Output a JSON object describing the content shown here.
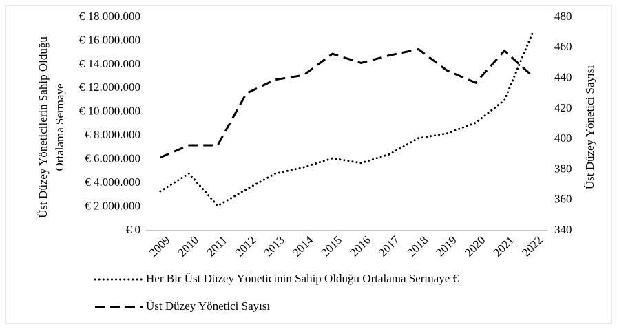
{
  "chart_data": {
    "type": "line",
    "y_label": [
      "Üst Düzey Yöneticilerin Sahip Olduğu",
      "Ortalama Sermaye"
    ],
    "y2_label": "Üst Düzey Yönetici Sayısı",
    "categories": [
      "2009",
      "2010",
      "2011",
      "2012",
      "2013",
      "2014",
      "2015",
      "2016",
      "2017",
      "2018",
      "2019",
      "2020",
      "2021",
      "2022"
    ],
    "series": [
      {
        "name": "Her Bir Üst Düzey Yöneticinin Sahip Olduğu Ortalama Sermaye €",
        "color": "#000000",
        "dash": "dotted",
        "values": [
          3310000,
          4820000,
          2090000,
          3480000,
          4800000,
          5340000,
          6100000,
          5700000,
          6450000,
          7800000,
          8200000,
          9100000,
          11000000,
          16800000
        ]
      },
      {
        "name": "Üst Düzey Yönetici Sayısı",
        "color": "#000000",
        "dash": "dashed",
        "axis": "y2",
        "values": [
          388,
          396,
          396,
          430,
          439,
          442,
          456,
          450,
          455,
          459,
          445,
          437,
          458,
          441
        ]
      }
    ],
    "ylim": [
      0,
      18000000
    ],
    "yticks": [
      {
        "value": 0,
        "label": "€ 0"
      },
      {
        "value": 2000000,
        "label": "€ 2.000.000"
      },
      {
        "value": 4000000,
        "label": "€ 4.000.000"
      },
      {
        "value": 6000000,
        "label": "€ 6.000.000"
      },
      {
        "value": 8000000,
        "label": "€ 8.000.000"
      },
      {
        "value": 10000000,
        "label": "€ 10.000.000"
      },
      {
        "value": 12000000,
        "label": "€ 12.000.000"
      },
      {
        "value": 14000000,
        "label": "€ 14.000.000"
      },
      {
        "value": 16000000,
        "label": "€ 16.000.000"
      },
      {
        "value": 18000000,
        "label": "€ 18.000.000"
      }
    ],
    "y2lim": [
      340,
      480
    ],
    "y2ticks": [
      340,
      360,
      380,
      400,
      420,
      440,
      460,
      480
    ],
    "grid": false,
    "legend": "bottom"
  }
}
